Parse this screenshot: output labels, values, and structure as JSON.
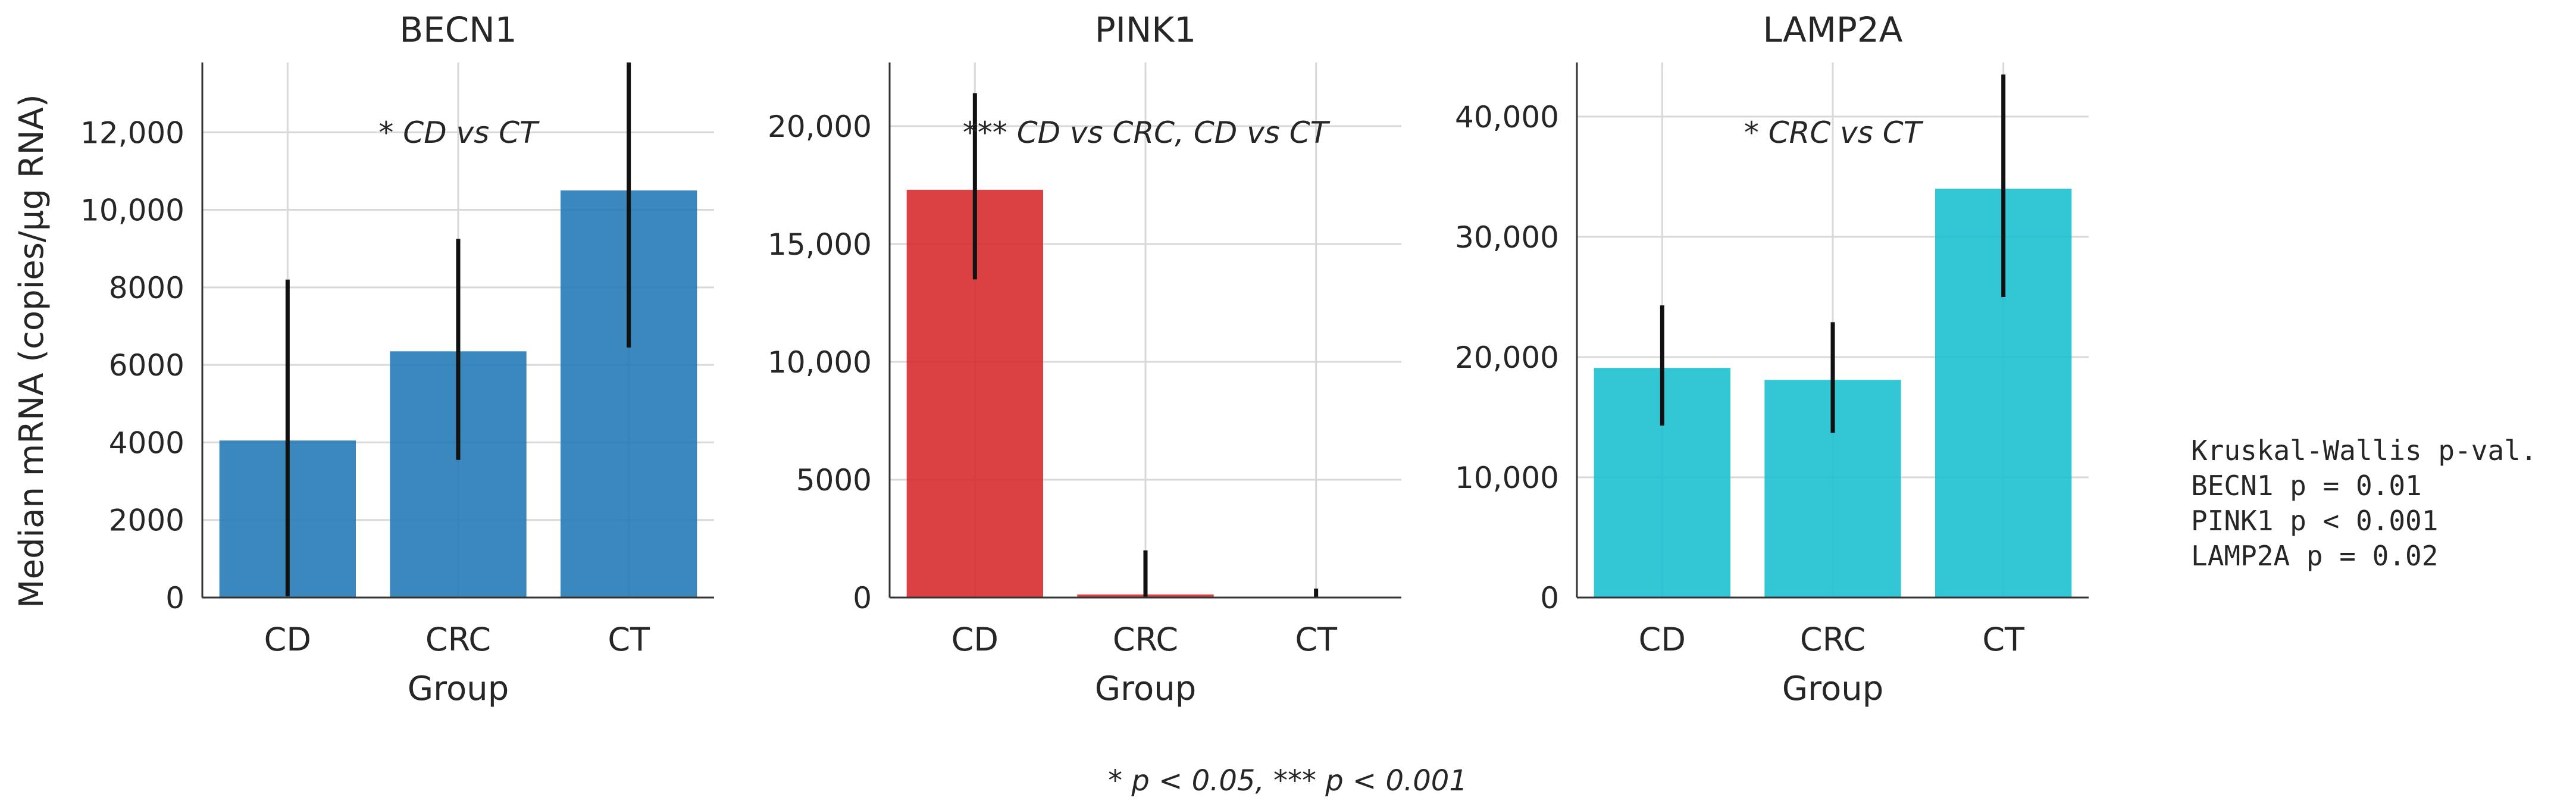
{
  "chart_data": [
    {
      "type": "bar",
      "title": "BECN1",
      "categories": [
        "CD",
        "CRC",
        "CT"
      ],
      "values": [
        4050,
        6350,
        10500
      ],
      "error_low": [
        30,
        3550,
        6450
      ],
      "error_high": [
        8200,
        9250,
        13800
      ],
      "xlabel": "Group",
      "ylabel": "Median mRNA (copies/µg RNA)",
      "ylim": [
        0,
        13800
      ],
      "yticks": [
        0,
        2000,
        4000,
        6000,
        8000,
        10000,
        12000
      ],
      "ytick_labels": [
        "0",
        "2000",
        "4000",
        "6000",
        "8000",
        "10,000",
        "12,000"
      ],
      "annotation": "* CD vs CT",
      "color": "#1f77b4",
      "grid": true
    },
    {
      "type": "bar",
      "title": "PINK1",
      "categories": [
        "CD",
        "CRC",
        "CT"
      ],
      "values": [
        17300,
        130,
        20
      ],
      "error_low": [
        13500,
        0,
        0
      ],
      "error_high": [
        21400,
        2000,
        380
      ],
      "xlabel": "Group",
      "ylabel": "",
      "ylim": [
        0,
        22700
      ],
      "yticks": [
        0,
        5000,
        10000,
        15000,
        20000
      ],
      "ytick_labels": [
        "0",
        "5000",
        "10,000",
        "15,000",
        "20,000"
      ],
      "annotation": "*** CD vs CRC, CD vs CT",
      "color": "#d62728",
      "grid": true
    },
    {
      "type": "bar",
      "title": "LAMP2A",
      "categories": [
        "CD",
        "CRC",
        "CT"
      ],
      "values": [
        19100,
        18100,
        34000
      ],
      "error_low": [
        14300,
        13700,
        25000
      ],
      "error_high": [
        24300,
        22900,
        43500
      ],
      "xlabel": "Group",
      "ylabel": "",
      "ylim": [
        0,
        44500
      ],
      "yticks": [
        0,
        10000,
        20000,
        30000,
        40000
      ],
      "ytick_labels": [
        "0",
        "10,000",
        "20,000",
        "30,000",
        "40,000"
      ],
      "annotation": "* CRC vs CT",
      "color": "#17becf",
      "grid": true
    }
  ],
  "stats_box": {
    "lines": [
      "Kruskal-Wallis p-val.",
      "BECN1 p = 0.01",
      "PINK1 p < 0.001",
      "LAMP2A p = 0.02"
    ]
  },
  "footnote": "* p < 0.05, *** p < 0.001"
}
